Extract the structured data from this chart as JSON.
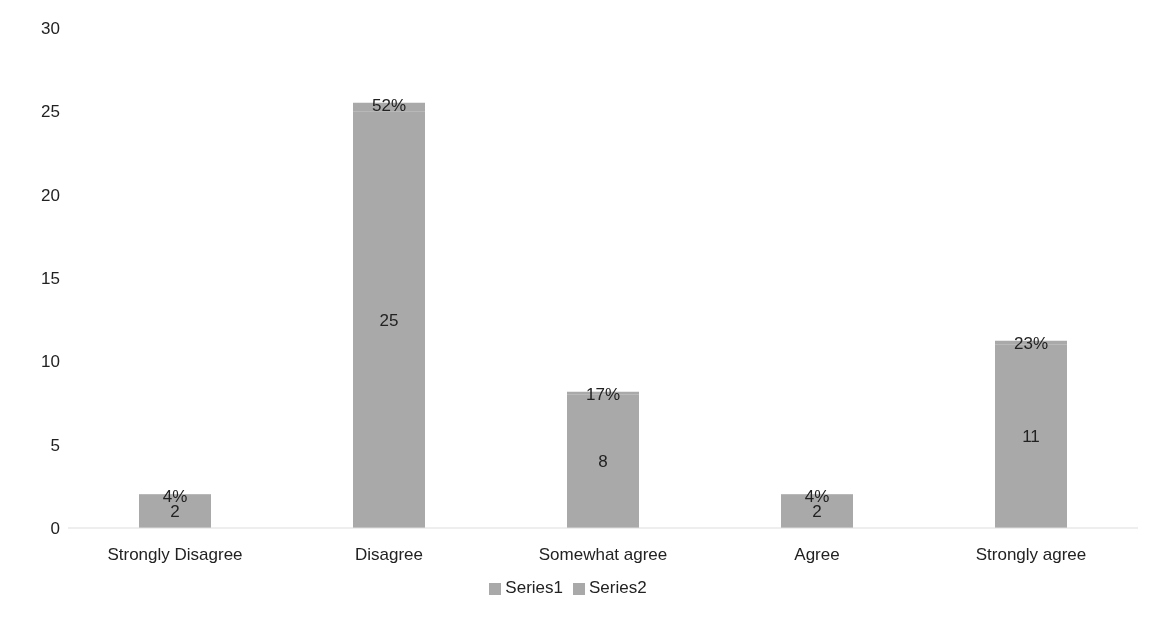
{
  "chart_data": {
    "type": "bar",
    "stacked": true,
    "categories": [
      "Strongly Disagree",
      "Disagree",
      "Somewhat agree",
      "Agree",
      "Strongly agree"
    ],
    "series": [
      {
        "name": "Series1",
        "color": "#a9a9a9",
        "values": [
          2,
          25,
          8,
          2,
          11
        ],
        "value_labels": [
          "2",
          "25",
          "8",
          "2",
          "11"
        ]
      },
      {
        "name": "Series2",
        "color": "#a9a9a9",
        "values": [
          0.04,
          0.52,
          0.17,
          0.04,
          0.23
        ],
        "value_labels": [
          "4%",
          "52%",
          "17%",
          "4%",
          "23%"
        ]
      }
    ],
    "ylim": [
      0,
      30
    ],
    "yticks": [
      0,
      5,
      10,
      15,
      20,
      25,
      30
    ],
    "grid": false,
    "legend": "bottom"
  }
}
